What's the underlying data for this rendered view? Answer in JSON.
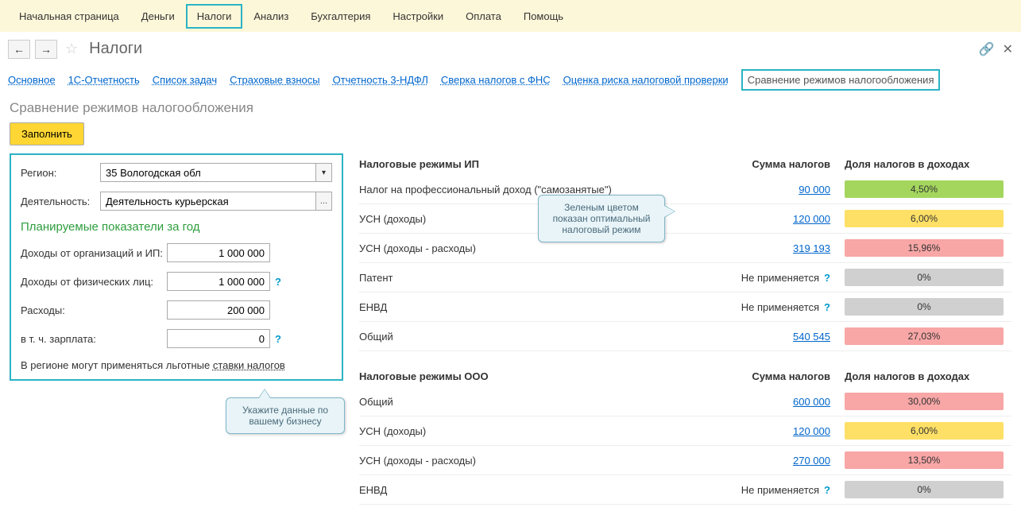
{
  "top_menu": {
    "items": [
      "Начальная страница",
      "Деньги",
      "Налоги",
      "Анализ",
      "Бухгалтерия",
      "Настройки",
      "Оплата",
      "Помощь"
    ],
    "highlighted_index": 2
  },
  "page_title": "Налоги",
  "sub_tabs": {
    "items": [
      "Основное",
      "1С-Отчетность",
      "Список задач",
      "Страховые взносы",
      "Отчетность 3-НДФЛ",
      "Сверка налогов с ФНС",
      "Оценка риска налоговой проверки",
      "Сравнение режимов налогообложения"
    ],
    "highlighted_index": 7
  },
  "section_title": "Сравнение режимов налогообложения",
  "fill_button": "Заполнить",
  "form": {
    "region_label": "Регион:",
    "region_value": "35 Вологодская обл",
    "activity_label": "Деятельность:",
    "activity_value": "Деятельность курьерская",
    "planned_heading": "Планируемые показатели за год",
    "income_org_label": "Доходы от организаций и ИП:",
    "income_org_value": "1 000 000",
    "income_phys_label": "Доходы от физических лиц:",
    "income_phys_value": "1 000 000",
    "expenses_label": "Расходы:",
    "expenses_value": "200 000",
    "salary_label": "в т. ч. зарплата:",
    "salary_value": "0",
    "footer_note_prefix": "В регионе могут применяться льготные ",
    "footer_note_link": "ставки налогов"
  },
  "callouts": {
    "left": "Укажите данные по вашему бизнесу",
    "right": "Зеленым цветом показан оптимальный налоговый режим"
  },
  "tax_ip": {
    "header": "Налоговые режимы ИП",
    "col_sum": "Сумма налогов",
    "col_share": "Доля налогов в доходах",
    "rows": [
      {
        "name": "Налог на профессиональный доход (\"самозанятые\")",
        "sum": "90 000",
        "na": false,
        "share": "4,50%",
        "bar": "bar-green"
      },
      {
        "name": "УСН (доходы)",
        "sum": "120 000",
        "na": false,
        "share": "6,00%",
        "bar": "bar-yellow"
      },
      {
        "name": "УСН (доходы - расходы)",
        "sum": "319 193",
        "na": false,
        "share": "15,96%",
        "bar": "bar-red"
      },
      {
        "name": "Патент",
        "sum": "Не применяется",
        "na": true,
        "share": "0%",
        "bar": "bar-gray"
      },
      {
        "name": "ЕНВД",
        "sum": "Не применяется",
        "na": true,
        "share": "0%",
        "bar": "bar-gray"
      },
      {
        "name": "Общий",
        "sum": "540 545",
        "na": false,
        "share": "27,03%",
        "bar": "bar-red"
      }
    ]
  },
  "tax_ooo": {
    "header": "Налоговые режимы ООО",
    "col_sum": "Сумма налогов",
    "col_share": "Доля налогов в доходах",
    "rows": [
      {
        "name": "Общий",
        "sum": "600 000",
        "na": false,
        "share": "30,00%",
        "bar": "bar-red"
      },
      {
        "name": "УСН (доходы)",
        "sum": "120 000",
        "na": false,
        "share": "6,00%",
        "bar": "bar-yellow"
      },
      {
        "name": "УСН (доходы - расходы)",
        "sum": "270 000",
        "na": false,
        "share": "13,50%",
        "bar": "bar-red"
      },
      {
        "name": "ЕНВД",
        "sum": "Не применяется",
        "na": true,
        "share": "0%",
        "bar": "bar-gray"
      }
    ]
  },
  "colors": {
    "highlight_border": "#2bb3c4",
    "topbar_bg": "#fdf7d9",
    "link": "#0066cc",
    "fill_btn": "#ffd633",
    "green_heading": "#2e9e3e",
    "callout_bg": "#e8f4f8",
    "callout_border": "#7fb5c9",
    "bar_green": "#a4d65e",
    "bar_yellow": "#ffe066",
    "bar_red": "#f8a6a6",
    "bar_gray": "#d0d0d0"
  }
}
